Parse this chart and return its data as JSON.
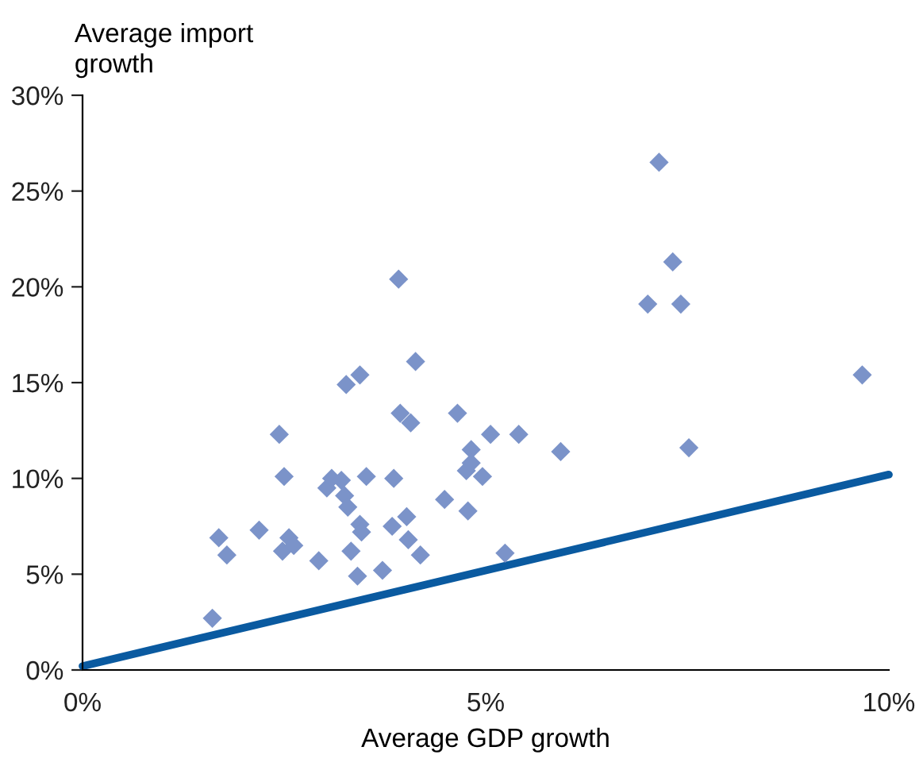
{
  "chart_data": {
    "type": "scatter",
    "xlabel": "Average GDP growth",
    "ylabel": "Average import\ngrowth",
    "xlim": [
      0,
      10
    ],
    "ylim": [
      0,
      30
    ],
    "xticks": [
      {
        "value": 0,
        "label": "0%"
      },
      {
        "value": 5,
        "label": "5%"
      },
      {
        "value": 10,
        "label": "10%"
      }
    ],
    "yticks": [
      {
        "value": 0,
        "label": "0%"
      },
      {
        "value": 5,
        "label": "5%"
      },
      {
        "value": 10,
        "label": "10%"
      },
      {
        "value": 15,
        "label": "15%"
      },
      {
        "value": 20,
        "label": "20%"
      },
      {
        "value": 25,
        "label": "25%"
      },
      {
        "value": 30,
        "label": "30%"
      }
    ],
    "grid": false,
    "legend": false,
    "series": [
      {
        "marker": "diamond",
        "color": "#7b93c9",
        "x": [
          1.61,
          1.69,
          1.79,
          2.19,
          2.44,
          2.5,
          2.48,
          2.56,
          2.62,
          2.93,
          3.03,
          3.09,
          3.21,
          3.25,
          3.29,
          3.33,
          3.27,
          3.44,
          3.41,
          3.44,
          3.46,
          3.52,
          3.72,
          3.84,
          3.86,
          3.92,
          3.94,
          4.07,
          4.02,
          4.04,
          4.13,
          4.19,
          4.49,
          4.65,
          4.76,
          4.82,
          4.82,
          4.78,
          4.96,
          5.06,
          5.24,
          5.41,
          5.93,
          7.01,
          7.15,
          7.32,
          7.42,
          7.52,
          9.67
        ],
        "values": [
          2.7,
          6.9,
          6.0,
          7.3,
          12.3,
          10.1,
          6.2,
          6.9,
          6.5,
          5.7,
          9.5,
          10.0,
          9.9,
          9.1,
          8.5,
          6.2,
          14.9,
          15.4,
          4.9,
          7.6,
          7.2,
          10.1,
          5.2,
          7.5,
          10.0,
          20.4,
          13.4,
          12.9,
          8.0,
          6.8,
          16.1,
          6.0,
          8.9,
          13.4,
          10.4,
          11.5,
          10.8,
          8.3,
          10.1,
          12.3,
          6.1,
          12.3,
          11.4,
          19.1,
          26.5,
          21.3,
          19.1,
          11.6,
          15.4
        ]
      },
      {
        "type": "line",
        "marker": "none",
        "line_style": "solid",
        "color": "#0a5aa0",
        "x": [
          0,
          10
        ],
        "values": [
          0.2,
          10.2
        ]
      }
    ]
  }
}
